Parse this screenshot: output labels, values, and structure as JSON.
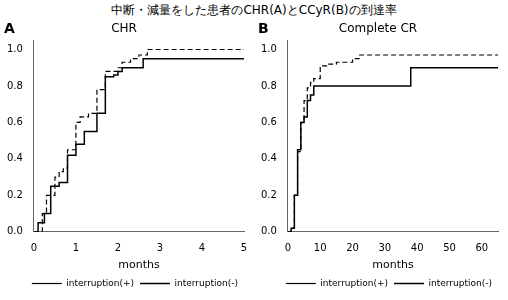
{
  "title": "中断・減量をした患者のCHR(A)とCCyR(B)の到達率",
  "chart_data": [
    {
      "type": "step",
      "title": "CHR",
      "annotations": [
        "A"
      ],
      "xlabel": "months",
      "xlim": [
        0,
        5
      ],
      "xticks": [
        0,
        1,
        2,
        3,
        4,
        5
      ],
      "ylim": [
        0.0,
        1.05
      ],
      "yticks": [
        {
          "value": 0.0,
          "label": "0.0"
        },
        0.2,
        0.4,
        0.6,
        0.8,
        {
          "value": 1.0,
          "label": "1.0"
        }
      ],
      "grid": false,
      "legend": "lower right",
      "series": [
        {
          "name": "interruption(+)",
          "color": "#000000",
          "line_style": "dashed",
          "x": [
            0,
            0.2,
            0.3,
            0.5,
            0.6,
            0.7,
            0.8,
            1.0,
            1.1,
            1.3,
            1.5,
            1.7,
            2.0,
            2.1,
            2.3,
            2.5,
            2.7,
            5.0
          ],
          "values": [
            0.0,
            0.1,
            0.2,
            0.3,
            0.33,
            0.35,
            0.45,
            0.6,
            0.63,
            0.65,
            0.78,
            0.88,
            0.9,
            0.93,
            0.95,
            0.97,
            1.0,
            1.0
          ]
        },
        {
          "name": "interruption(-)",
          "color": "#000000",
          "line_style": "solid",
          "x": [
            0,
            0.1,
            0.25,
            0.4,
            0.6,
            0.8,
            1.0,
            1.2,
            1.5,
            1.7,
            1.9,
            2.0,
            2.1,
            2.6,
            5.0
          ],
          "values": [
            0.0,
            0.05,
            0.1,
            0.25,
            0.27,
            0.42,
            0.48,
            0.55,
            0.65,
            0.85,
            0.86,
            0.88,
            0.9,
            0.95,
            0.95
          ]
        }
      ]
    },
    {
      "type": "step",
      "title": "Complete CR",
      "annotations": [
        "B"
      ],
      "xlabel": "months",
      "xlim": [
        0,
        65
      ],
      "xticks": [
        0,
        10,
        20,
        30,
        40,
        50,
        60
      ],
      "ylim": [
        0.0,
        1.05
      ],
      "yticks": [
        {
          "value": 0.0,
          "label": "0.0"
        },
        0.2,
        0.4,
        0.6,
        0.8,
        {
          "value": 1.0,
          "label": "1.0"
        }
      ],
      "grid": false,
      "legend": "lower right",
      "series": [
        {
          "name": "interruption(+)",
          "color": "#000000",
          "line_style": "dashed",
          "x": [
            0,
            0.5,
            1,
            2,
            3,
            4,
            5,
            6,
            7,
            8,
            10,
            12,
            15,
            20,
            22,
            65
          ],
          "values": [
            0.0,
            0.0,
            0.02,
            0.2,
            0.44,
            0.6,
            0.72,
            0.79,
            0.82,
            0.84,
            0.91,
            0.92,
            0.93,
            0.95,
            0.97,
            0.97
          ]
        },
        {
          "name": "interruption(-)",
          "color": "#000000",
          "line_style": "solid",
          "x": [
            0,
            0.5,
            1,
            2,
            3,
            4,
            5,
            6,
            7,
            8,
            10,
            20,
            38,
            65
          ],
          "values": [
            0.0,
            0.0,
            0.02,
            0.2,
            0.45,
            0.6,
            0.63,
            0.72,
            0.75,
            0.8,
            0.8,
            0.8,
            0.9,
            0.9
          ]
        }
      ]
    }
  ]
}
